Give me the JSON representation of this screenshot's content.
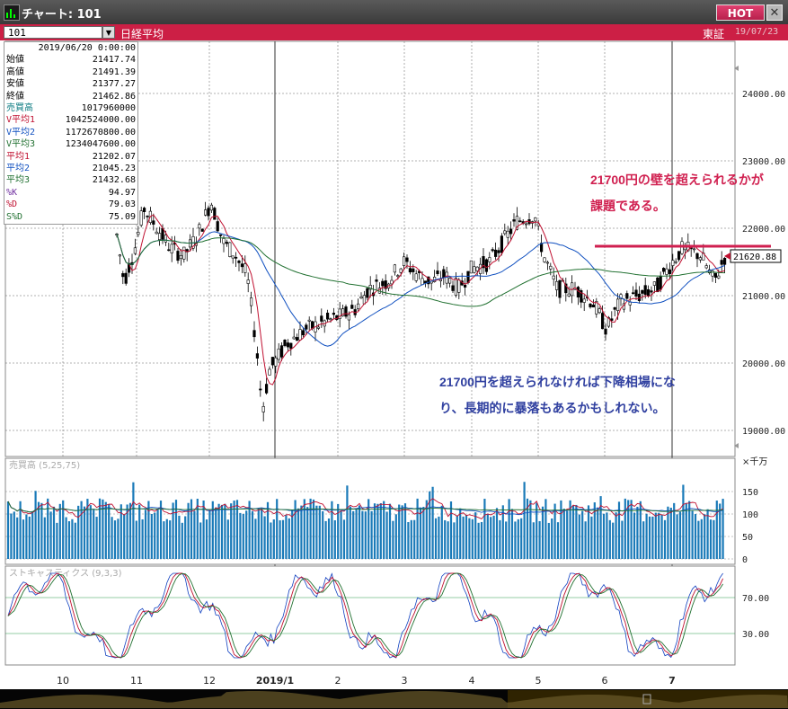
{
  "window": {
    "title": "チャート: 101",
    "hot_label": "HOT",
    "close_label": "✕"
  },
  "symbol": {
    "code": "101",
    "name": "日経平均",
    "exchange": "東証",
    "date": "19/07/23"
  },
  "info": {
    "datetime": "2019/06/20 0:00:00",
    "rows": [
      {
        "label": "始値",
        "value": "21417.74",
        "color": "blk"
      },
      {
        "label": "高値",
        "value": "21491.39",
        "color": "blk"
      },
      {
        "label": "安値",
        "value": "21377.27",
        "color": "blk"
      },
      {
        "label": "終値",
        "value": "21462.86",
        "color": "blk"
      },
      {
        "label": "売買高",
        "value": "1017960000",
        "color": "teal"
      },
      {
        "label": "V平均1",
        "value": "1042524000.00",
        "color": "red"
      },
      {
        "label": "V平均2",
        "value": "1172670800.00",
        "color": "blue"
      },
      {
        "label": "V平均3",
        "value": "1234047600.00",
        "color": "grn"
      },
      {
        "label": "平均1",
        "value": "21202.07",
        "color": "red"
      },
      {
        "label": "平均2",
        "value": "21045.23",
        "color": "blue"
      },
      {
        "label": "平均3",
        "value": "21432.68",
        "color": "grn"
      },
      {
        "label": "%K",
        "value": "94.97",
        "color": "purple"
      },
      {
        "label": "%D",
        "value": "79.03",
        "color": "red"
      },
      {
        "label": "S%D",
        "value": "75.09",
        "color": "grn"
      }
    ]
  },
  "price_axis": [
    "24000.00",
    "23000.00",
    "22000.00",
    "21000.00",
    "20000.00",
    "19000.00"
  ],
  "current_price": "21620.88",
  "volume_panel": {
    "label": "売買高 (5,25,75)",
    "unit": "×千万",
    "ticks": [
      "150",
      "100",
      "50",
      "0"
    ]
  },
  "stoch_panel": {
    "label": "ストキャスティクス (9,3,3)",
    "ticks": [
      "70.00",
      "30.00"
    ]
  },
  "x_labels": [
    "10",
    "11",
    "12",
    "2019/1",
    "2",
    "3",
    "4",
    "5",
    "6",
    "7"
  ],
  "annotations": {
    "resistance_line1": "21700円の壁を超えられるかが",
    "resistance_line2": "課題である。",
    "bear_line1": "21700円を超えられなければ下降相場にな",
    "bear_line2": "り、長期的に暴落もあるかもしれない。"
  },
  "colors": {
    "accent": "#cc1f45",
    "up": "#ffffff",
    "down": "#000000",
    "ma1": "#c01030",
    "ma2": "#1050c0",
    "ma3": "#207030",
    "volume": "#1a7ab8",
    "annotation_red": "#d02050",
    "annotation_blue": "#3040a0"
  }
}
